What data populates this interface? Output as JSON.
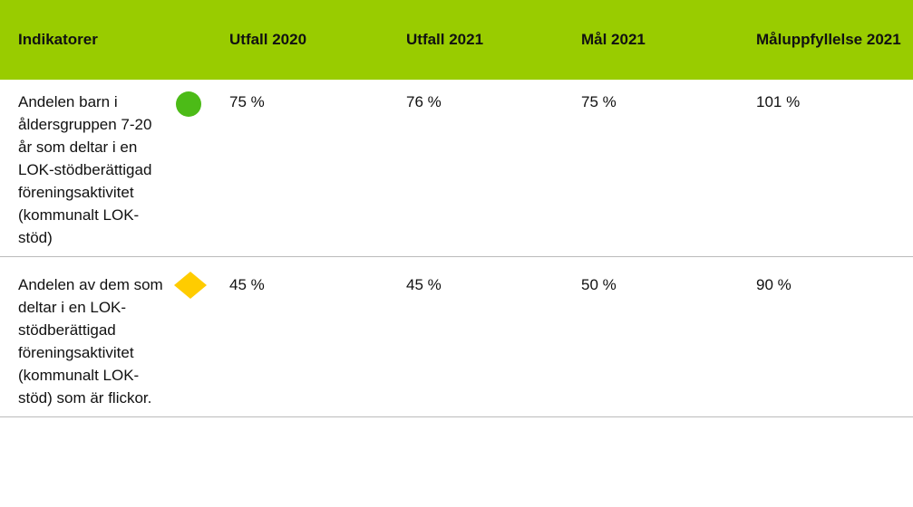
{
  "table": {
    "header": [
      "Indikatorer",
      "Utfall 2020",
      "Utfall 2021",
      "Mål 2021",
      "Måluppfyllelse 2021"
    ],
    "rows": [
      [
        "Andelen barn i åldersgruppen 7-20 år som deltar i en LOK-stödberättigad föreningsaktivitet (kommunalt LOK-stöd)",
        "75 %",
        "76 %",
        "75 %",
        "101 %"
      ],
      [
        "Andelen av dem som deltar i en LOK-stödberättigad föreningsaktivitet (kommunalt LOK-stöd) som är flickor.",
        "45 %",
        "45 %",
        "50 %",
        "90 %"
      ]
    ]
  }
}
